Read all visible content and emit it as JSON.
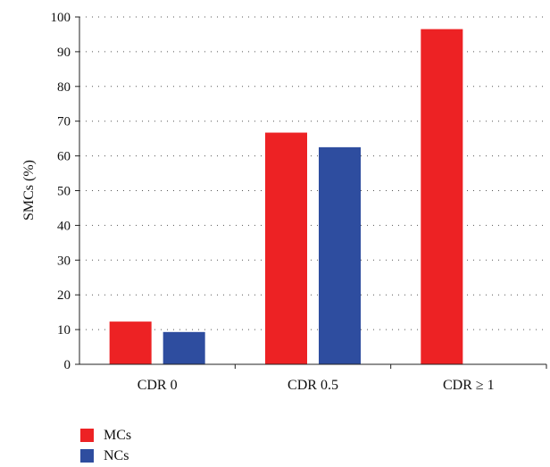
{
  "chart_data": {
    "type": "bar",
    "ylabel": "SMCs (%)",
    "xlabel": "",
    "ylim": [
      0,
      100
    ],
    "yticks": [
      0,
      10,
      20,
      30,
      40,
      50,
      60,
      70,
      80,
      90,
      100
    ],
    "grid": "dotted horizontal",
    "categories": [
      "CDR 0",
      "CDR 0.5",
      "CDR ≥ 1"
    ],
    "series": [
      {
        "name": "MCs",
        "color": "#ed2224",
        "values": [
          12.3,
          66.7,
          96.5
        ]
      },
      {
        "name": "NCs",
        "color": "#2e4d9f",
        "values": [
          9.3,
          62.5,
          null
        ]
      }
    ],
    "legend": {
      "placement": "bottom-left"
    }
  }
}
